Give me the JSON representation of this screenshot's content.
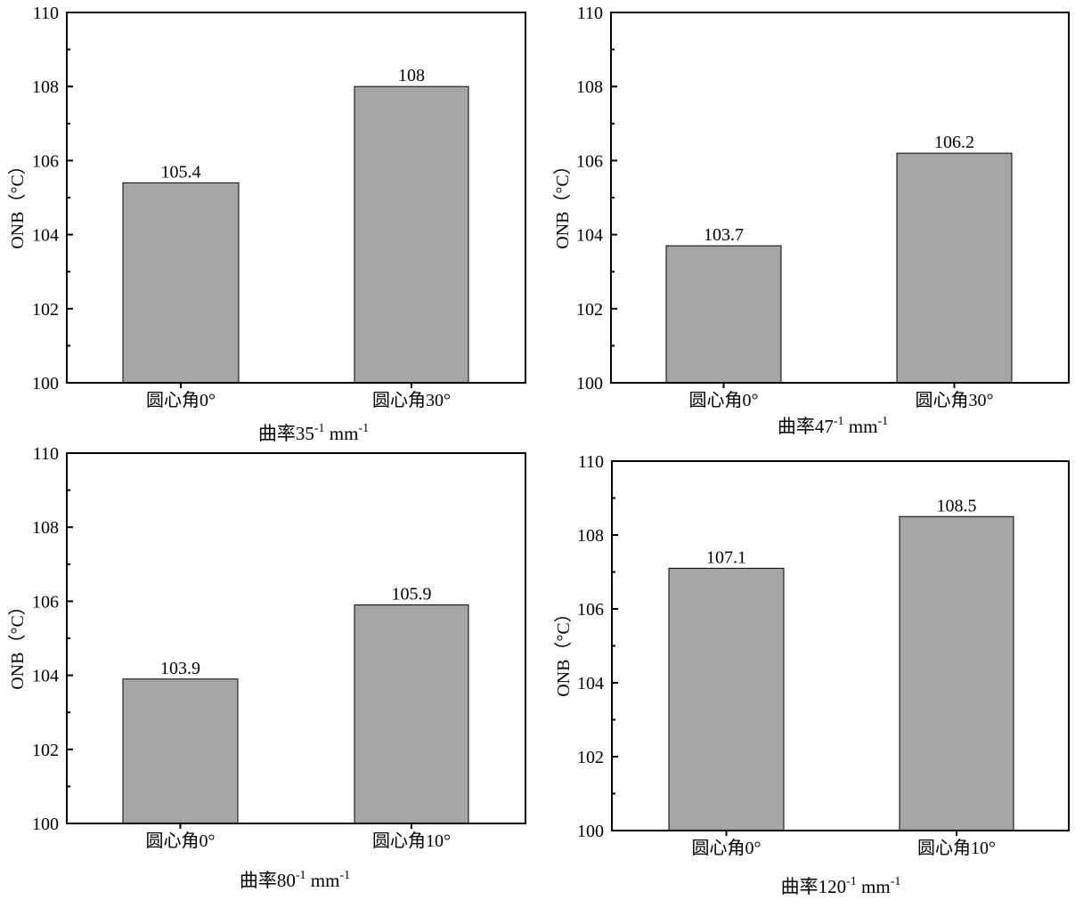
{
  "chart_data": [
    {
      "type": "bar",
      "categories": [
        "圆心角0°",
        "圆心角30°"
      ],
      "values": [
        105.4,
        108
      ],
      "data_labels": [
        "105.4",
        "108"
      ],
      "xlabel": {
        "prefix": "曲率35",
        "exp1": "-1",
        "unit": " mm",
        "exp2": "-1"
      },
      "ylabel": "ONB（°C）",
      "ylim": [
        100,
        110
      ],
      "yticks": [
        "100",
        "102",
        "104",
        "106",
        "108",
        "110"
      ],
      "bar_color": "#a5a5a5",
      "grid": false
    },
    {
      "type": "bar",
      "categories": [
        "圆心角0°",
        "圆心角30°"
      ],
      "values": [
        103.7,
        106.2
      ],
      "data_labels": [
        "103.7",
        "106.2"
      ],
      "xlabel": {
        "prefix": "曲率47",
        "exp1": "-1",
        "unit": " mm",
        "exp2": "-1"
      },
      "ylabel": "ONB（°C）",
      "ylim": [
        100,
        110
      ],
      "yticks": [
        "100",
        "102",
        "104",
        "106",
        "108",
        "110"
      ],
      "bar_color": "#a5a5a5",
      "grid": false
    },
    {
      "type": "bar",
      "categories": [
        "圆心角0°",
        "圆心角10°"
      ],
      "values": [
        103.9,
        105.9
      ],
      "data_labels": [
        "103.9",
        "105.9"
      ],
      "xlabel": {
        "prefix": "曲率80",
        "exp1": "-1",
        "unit": " mm",
        "exp2": "-1"
      },
      "ylabel": "ONB（°C）",
      "ylim": [
        100,
        110
      ],
      "yticks": [
        "100",
        "102",
        "104",
        "106",
        "108",
        "110"
      ],
      "bar_color": "#a5a5a5",
      "grid": false
    },
    {
      "type": "bar",
      "categories": [
        "圆心角0°",
        "圆心角10°"
      ],
      "values": [
        107.1,
        108.5
      ],
      "data_labels": [
        "107.1",
        "108.5"
      ],
      "xlabel": {
        "prefix": "曲率120",
        "exp1": "-1",
        "unit": " mm",
        "exp2": "-1"
      },
      "ylabel": "ONB（°C）",
      "ylim": [
        100,
        110
      ],
      "yticks": [
        "100",
        "102",
        "104",
        "106",
        "108",
        "110"
      ],
      "bar_color": "#a5a5a5",
      "grid": false
    }
  ]
}
